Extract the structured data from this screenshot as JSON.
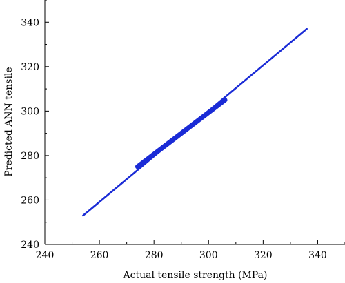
{
  "chart_data": {
    "type": "line",
    "title": "",
    "xlabel": "Actual tensile strength (MPa)",
    "ylabel": "Predicted ANN tensile",
    "xlim": [
      240,
      350
    ],
    "ylim": [
      240,
      350
    ],
    "xticks": [
      240,
      260,
      280,
      300,
      320,
      340
    ],
    "yticks": [
      240,
      260,
      280,
      300,
      320,
      340
    ],
    "grid": false,
    "color": "#1a2bd6",
    "series": [
      {
        "x": [
          254,
          336
        ],
        "y": [
          253,
          337
        ]
      }
    ],
    "dense_band": {
      "x": [
        274,
        306
      ],
      "y": [
        275,
        305
      ]
    }
  }
}
